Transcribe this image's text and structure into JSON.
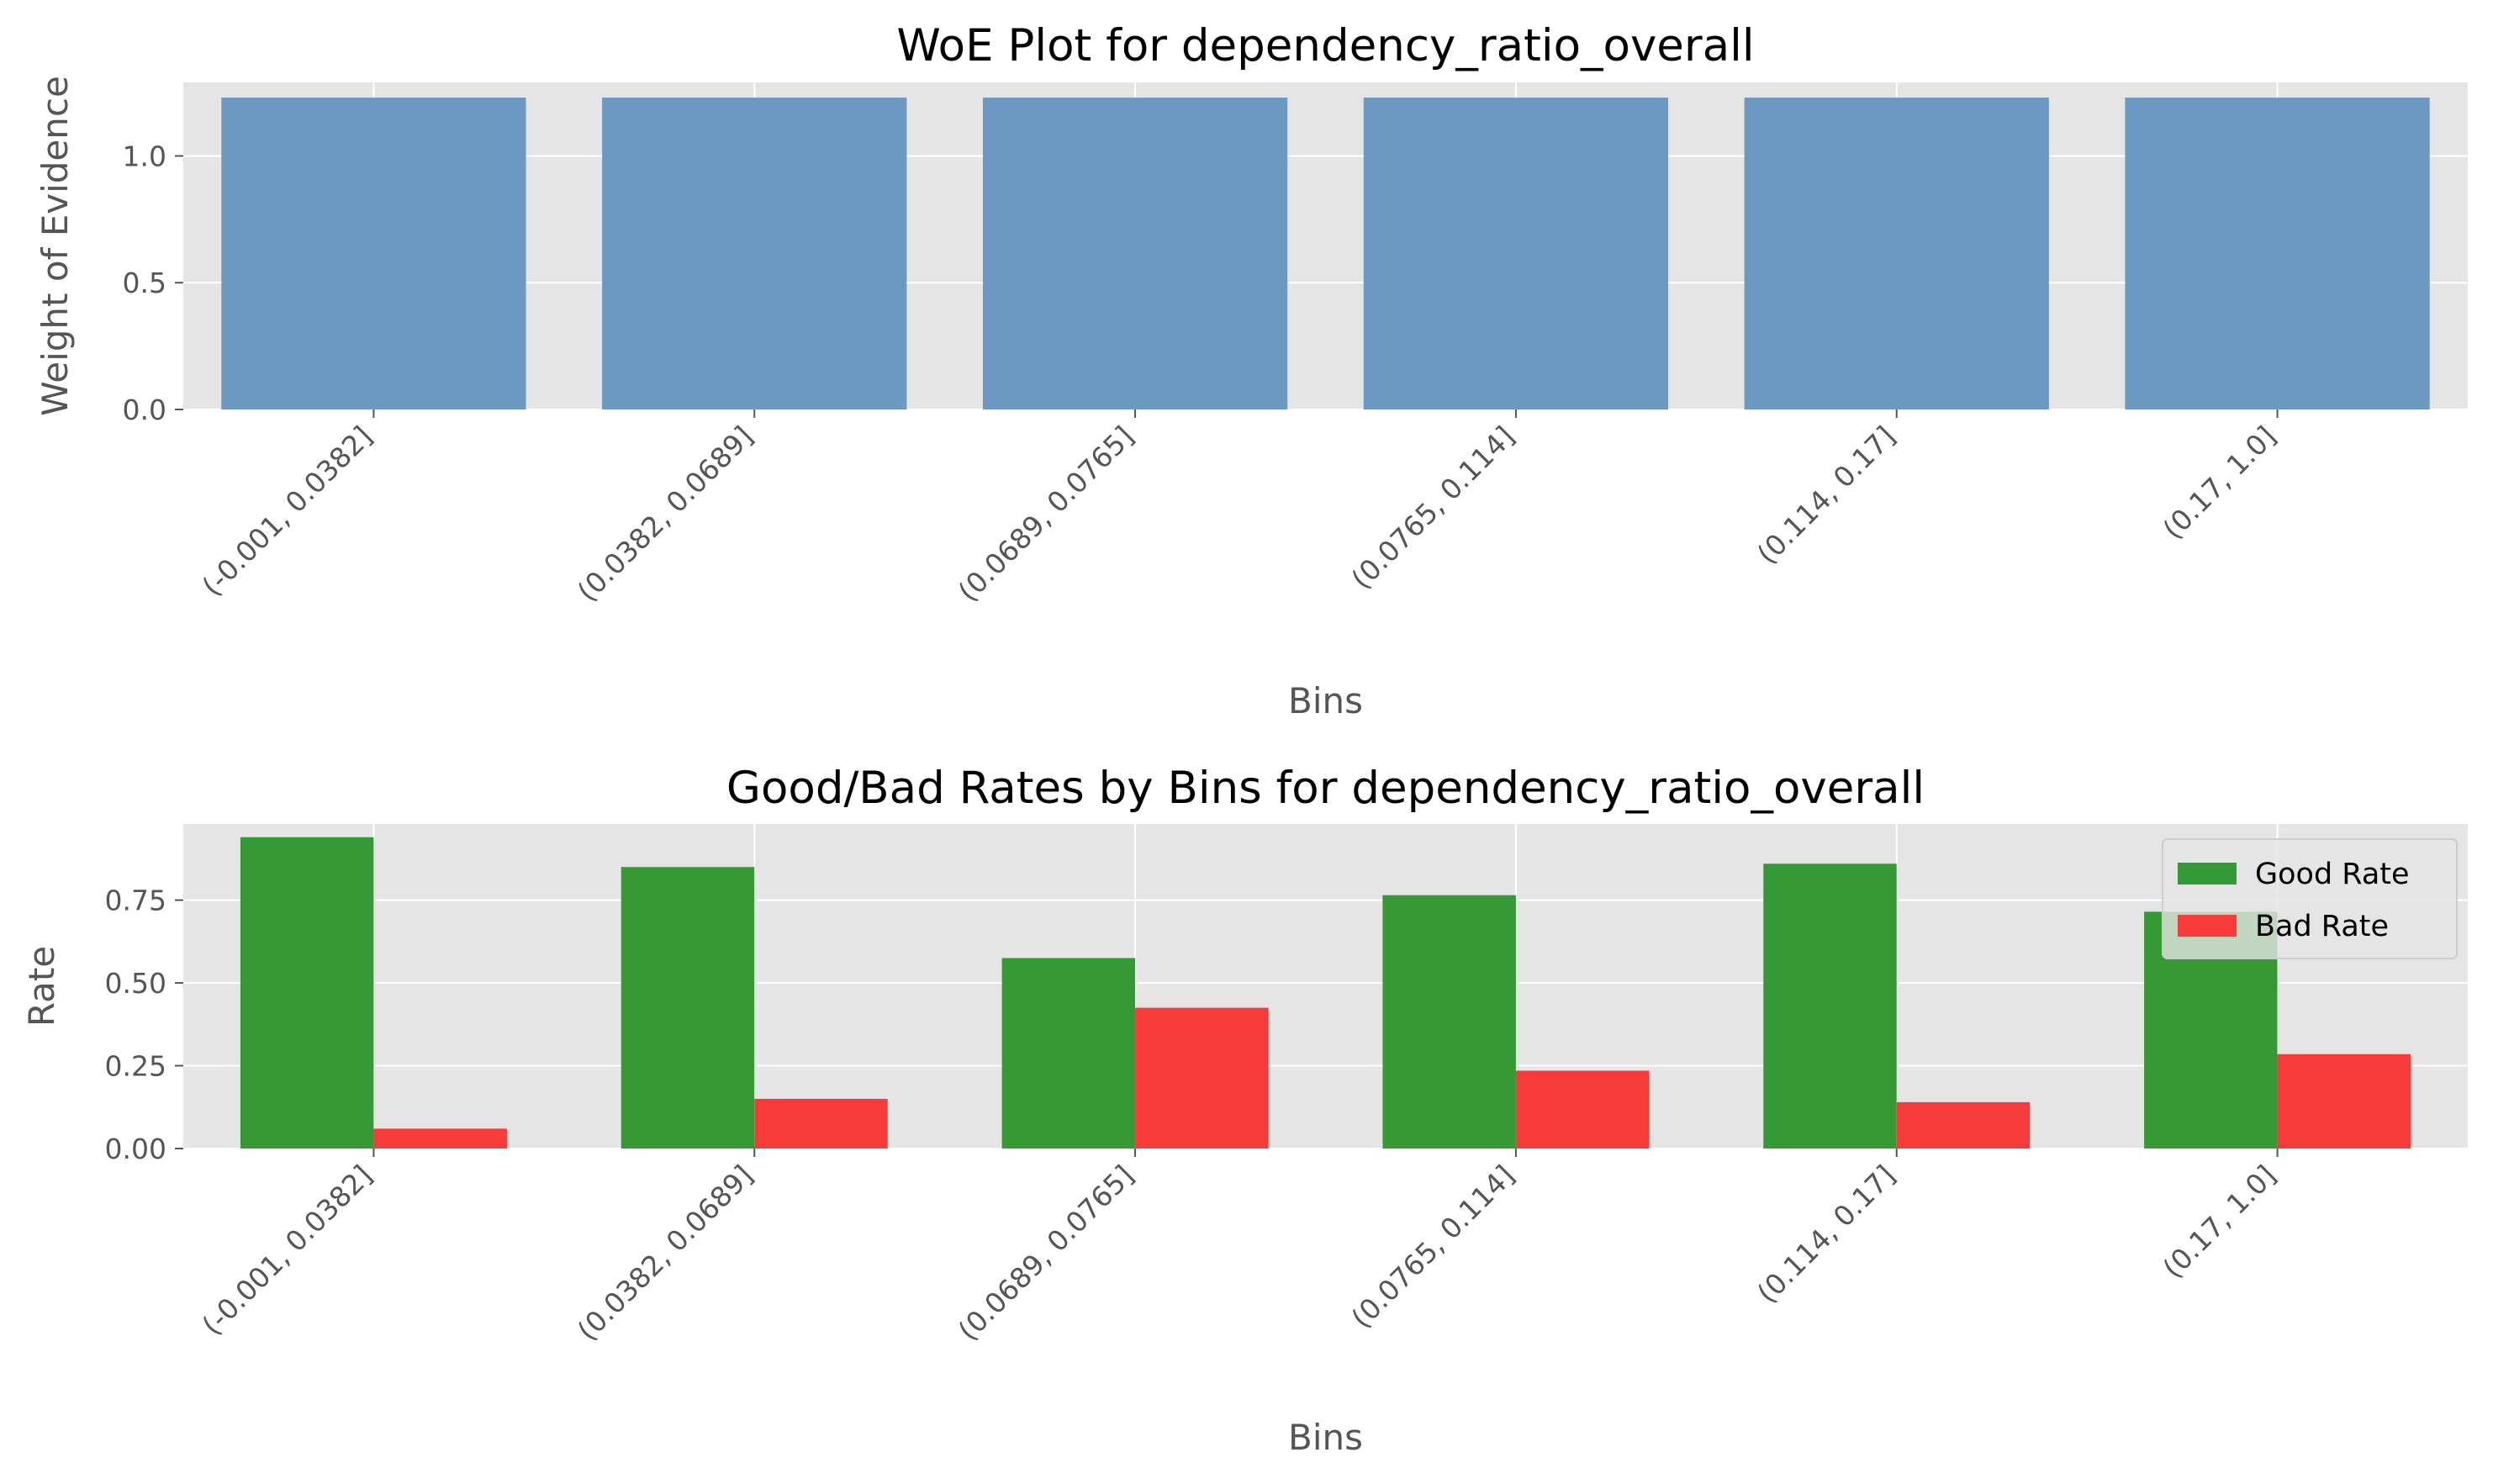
{
  "chart_data": [
    {
      "type": "bar",
      "title": "WoE Plot for dependency_ratio_overall",
      "xlabel": "Bins",
      "ylabel": "Weight of Evidence",
      "categories": [
        "(-0.001, 0.0382]",
        "(0.0382, 0.0689]",
        "(0.0689, 0.0765]",
        "(0.0765, 0.114]",
        "(0.114, 0.17]",
        "(0.17, 1.0]"
      ],
      "values": [
        1.23,
        1.23,
        1.23,
        1.23,
        1.23,
        1.23
      ],
      "ylim": [
        0,
        1.29
      ],
      "yticks": [
        0.0,
        0.5,
        1.0
      ],
      "ytick_labels": [
        "0.0",
        "0.5",
        "1.0"
      ],
      "grid": true,
      "colors": {
        "bar": "#6c99c2"
      }
    },
    {
      "type": "bar",
      "title": "Good/Bad Rates by Bins for dependency_ratio_overall",
      "xlabel": "Bins",
      "ylabel": "Rate",
      "categories": [
        "(-0.001, 0.0382]",
        "(0.0382, 0.0689]",
        "(0.0689, 0.0765]",
        "(0.0765, 0.114]",
        "(0.114, 0.17]",
        "(0.17, 1.0]"
      ],
      "series": [
        {
          "name": "Good Rate",
          "values": [
            0.94,
            0.85,
            0.575,
            0.765,
            0.86,
            0.715
          ],
          "color": "#359a35"
        },
        {
          "name": "Bad Rate",
          "values": [
            0.06,
            0.15,
            0.425,
            0.235,
            0.14,
            0.285
          ],
          "color": "#f73a3a"
        }
      ],
      "ylim": [
        0,
        0.98
      ],
      "yticks": [
        0.0,
        0.25,
        0.5,
        0.75
      ],
      "ytick_labels": [
        "0.00",
        "0.25",
        "0.50",
        "0.75"
      ],
      "grid": true,
      "legend_position": "upper-right"
    }
  ]
}
